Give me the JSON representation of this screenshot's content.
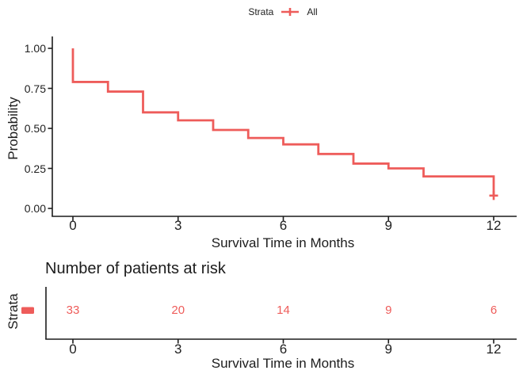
{
  "chart_data": {
    "type": "line",
    "variant": "kaplan_meier_step_curve",
    "title": "",
    "grid": "off",
    "background": "#ffffff",
    "legend": {
      "title": "Strata",
      "position": "top",
      "entries": [
        {
          "label": "All",
          "color": "#ee5c5a",
          "symbol": "plus-on-line"
        }
      ]
    },
    "x": {
      "label": "Survival Time in Months",
      "ticks": [
        0,
        3,
        6,
        9,
        12
      ],
      "range": [
        0,
        12
      ]
    },
    "y": {
      "label": "Probability",
      "tick_labels": [
        "1.00",
        "0.75",
        "0.50",
        "0.25",
        "0.00"
      ],
      "tick_values": [
        1.0,
        0.75,
        0.5,
        0.25,
        0.0
      ],
      "range": [
        0,
        1
      ]
    },
    "series": [
      {
        "name": "All",
        "color": "#ee5c5a",
        "step_points": [
          [
            0,
            1.0
          ],
          [
            0,
            0.79
          ],
          [
            1,
            0.73
          ],
          [
            2,
            0.6
          ],
          [
            3,
            0.55
          ],
          [
            4,
            0.49
          ],
          [
            5,
            0.44
          ],
          [
            6,
            0.4
          ],
          [
            7,
            0.34
          ],
          [
            8,
            0.28
          ],
          [
            9,
            0.25
          ],
          [
            10,
            0.2
          ],
          [
            12,
            0.08
          ]
        ],
        "censored_points": [
          [
            12,
            0.08
          ]
        ]
      }
    ],
    "risk_table": {
      "title": "Number of patients at risk",
      "axis_label": "Strata",
      "x_label": "Survival Time in Months",
      "x_ticks": [
        0,
        3,
        6,
        9,
        12
      ],
      "rows": [
        {
          "name": "All",
          "color": "#ee5c5a",
          "times": [
            0,
            3,
            6,
            9,
            12
          ],
          "counts": [
            33,
            20,
            14,
            9,
            6
          ]
        }
      ]
    },
    "colors": {
      "strata_all": "#ee5c5a",
      "axis": "#1c1c1c",
      "text": "#1f1f1f"
    }
  }
}
